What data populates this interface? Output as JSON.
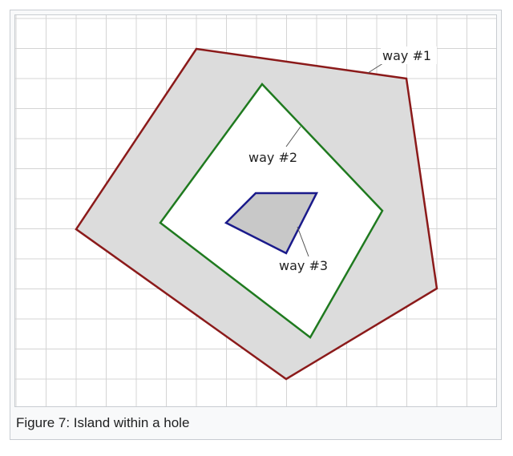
{
  "diagram": {
    "labels": {
      "way1": "way #1",
      "way2": "way #2",
      "way3": "way #3"
    },
    "colors": {
      "way1_stroke": "#8b1a1a",
      "way2_stroke": "#1f7a1f",
      "way3_stroke": "#1a1a8b",
      "outer_fill": "#dcdcdc",
      "hole_fill": "#ffffff",
      "island_fill": "#c8c8c8",
      "grid": "#d4d4d4"
    }
  },
  "caption": {
    "text": "Figure 7: Island within a hole"
  }
}
